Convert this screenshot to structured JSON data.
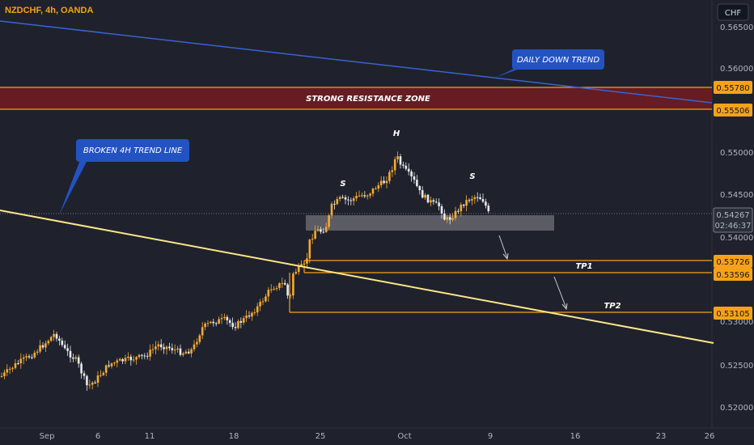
{
  "header": {
    "symbol_label": "NZDCHF, 4h, OANDA"
  },
  "currency_button": {
    "label": "CHF"
  },
  "colors": {
    "background": "#1f222c",
    "candle_up": "#f7a931",
    "candle_down": "#e8e9ee",
    "level_line": "#f7a11a",
    "resistance_fill": "#6e1c22",
    "daily_trend": "#3a63d1",
    "h4_trend": "#fde68a",
    "callout_fill": "#2353c2",
    "support_zone": "#8d8d94"
  },
  "chart_data": {
    "type": "candlestick",
    "symbol": "NZDCHF",
    "interval": "4h",
    "broker": "OANDA",
    "ylim": [
      0.5175,
      0.5665
    ],
    "x_ticks": [
      "Sep",
      "6",
      "11",
      "18",
      "25",
      "Oct",
      "9",
      "16",
      "23",
      "26"
    ],
    "y_ticks": [
      "0.56500",
      "0.56000",
      "0.55000",
      "0.54500",
      "0.54000",
      "0.53000",
      "0.52500",
      "0.52000"
    ],
    "price_tags": [
      "0.55780",
      "0.55506",
      "0.54267",
      "0.53726",
      "0.53596",
      "0.53105"
    ],
    "last_price": "0.54267",
    "countdown": "02:46:37",
    "zones": {
      "resistance": {
        "label": "STRONG RESISTANCE ZONE",
        "from": 0.55506,
        "to": 0.5578
      },
      "support": {
        "from": 0.5412,
        "to": 0.5431
      }
    },
    "levels": [
      {
        "price": 0.53726,
        "label": "TP1"
      },
      {
        "price": 0.53596,
        "label": ""
      },
      {
        "price": 0.53105,
        "label": "TP2"
      }
    ],
    "trendlines": [
      {
        "name": "DAILY DOWN TREND",
        "from_price": 0.5654,
        "to_price": 0.5553
      },
      {
        "name": "BROKEN 4H TREND LINE",
        "from_price": 0.5432,
        "to_price": 0.5272
      }
    ],
    "pattern_labels": [
      "S",
      "H",
      "S"
    ],
    "callouts": {
      "daily": "DAILY DOWN TREND",
      "h4": "BROKEN 4H TREND LINE"
    }
  }
}
